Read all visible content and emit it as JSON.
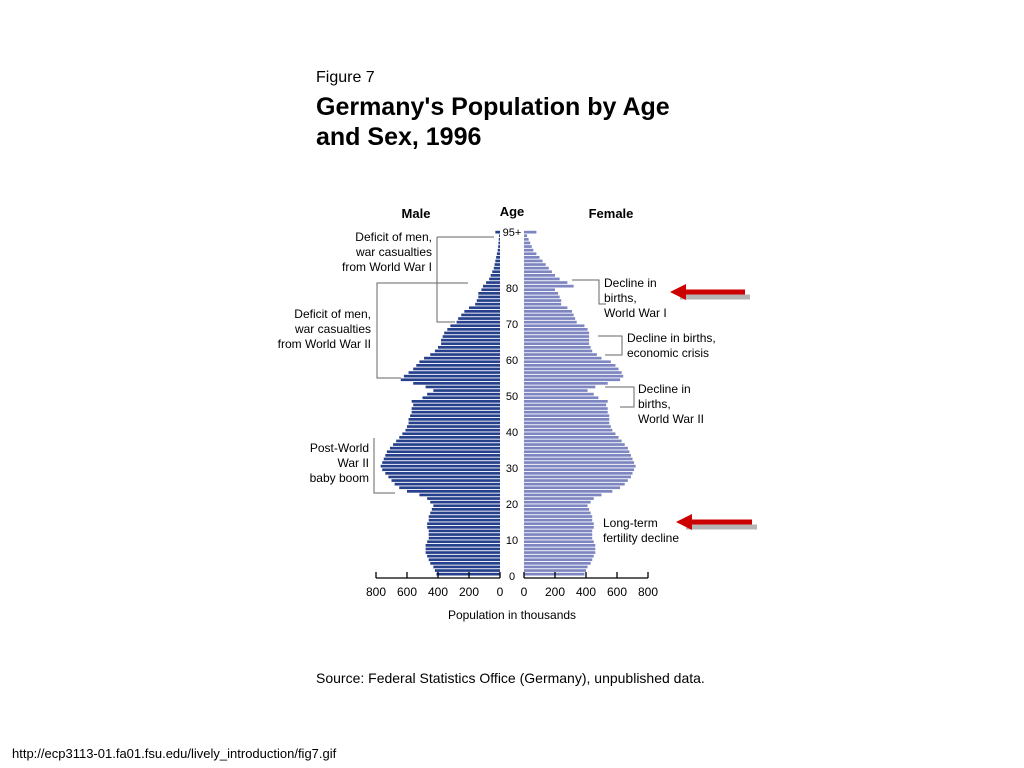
{
  "figure": {
    "label": "Figure 7",
    "title": "Germany's Population by Age\nand Sex, 1996",
    "source": "Source: Federal Statistics Office (Germany), unpublished data.",
    "url": "http://ecp3113-01.fa01.fsu.edu/lively_introduction/fig7.gif"
  },
  "colors": {
    "male": "#27408b",
    "female": "#7d86c0",
    "line": "#000000",
    "bracket": "#666666",
    "arrow": "#cc0000",
    "arrow_shadow": "#b5b5b5"
  },
  "chart_data": {
    "type": "population_pyramid",
    "title": "Germany's Population by Age and Sex, 1996",
    "left_label": "Male",
    "right_label": "Female",
    "center_label": "Age",
    "xlabel": "Population in thousands",
    "x_ticks_left": [
      "800",
      "600",
      "400",
      "200",
      "0"
    ],
    "x_ticks_right": [
      "0",
      "200",
      "400",
      "600",
      "800"
    ],
    "x_tick_values": [
      800,
      600,
      400,
      200,
      0
    ],
    "xlim": [
      0,
      800
    ],
    "y_ticks": [
      "0",
      "10",
      "20",
      "30",
      "40",
      "50",
      "60",
      "70",
      "80",
      "95+"
    ],
    "y_tick_values": [
      0,
      10,
      20,
      30,
      40,
      50,
      60,
      70,
      80,
      95
    ],
    "y_range": [
      0,
      95
    ],
    "age_step": 1,
    "ages": [
      0,
      1,
      2,
      3,
      4,
      5,
      6,
      7,
      8,
      9,
      10,
      11,
      12,
      13,
      14,
      15,
      16,
      17,
      18,
      19,
      20,
      21,
      22,
      23,
      24,
      25,
      26,
      27,
      28,
      29,
      30,
      31,
      32,
      33,
      34,
      35,
      36,
      37,
      38,
      39,
      40,
      41,
      42,
      43,
      44,
      45,
      46,
      47,
      48,
      49,
      50,
      51,
      52,
      53,
      54,
      55,
      56,
      57,
      58,
      59,
      60,
      61,
      62,
      63,
      64,
      65,
      66,
      67,
      68,
      69,
      70,
      71,
      72,
      73,
      74,
      75,
      76,
      77,
      78,
      79,
      80,
      81,
      82,
      83,
      84,
      85,
      86,
      87,
      88,
      89,
      90,
      91,
      92,
      93,
      94,
      95
    ],
    "male": [
      410,
      420,
      430,
      450,
      460,
      470,
      480,
      480,
      480,
      470,
      460,
      460,
      460,
      470,
      470,
      460,
      460,
      450,
      440,
      430,
      450,
      470,
      520,
      600,
      650,
      680,
      700,
      720,
      740,
      760,
      770,
      760,
      750,
      740,
      730,
      710,
      690,
      670,
      650,
      630,
      610,
      600,
      590,
      590,
      580,
      570,
      570,
      560,
      570,
      500,
      470,
      430,
      480,
      560,
      640,
      620,
      590,
      560,
      540,
      520,
      490,
      450,
      420,
      400,
      380,
      380,
      370,
      360,
      340,
      320,
      280,
      270,
      250,
      230,
      200,
      160,
      150,
      140,
      140,
      120,
      110,
      90,
      70,
      60,
      50,
      40,
      35,
      30,
      25,
      20,
      15,
      12,
      10,
      8,
      6,
      30
    ],
    "female": [
      390,
      400,
      410,
      430,
      440,
      450,
      460,
      460,
      460,
      450,
      440,
      440,
      440,
      450,
      450,
      440,
      440,
      430,
      420,
      410,
      430,
      450,
      500,
      570,
      620,
      650,
      670,
      690,
      700,
      710,
      720,
      710,
      700,
      690,
      680,
      670,
      650,
      630,
      610,
      590,
      570,
      560,
      550,
      550,
      550,
      540,
      540,
      530,
      540,
      480,
      450,
      410,
      460,
      540,
      620,
      640,
      630,
      610,
      590,
      560,
      500,
      470,
      440,
      430,
      420,
      420,
      420,
      420,
      410,
      390,
      340,
      330,
      320,
      310,
      280,
      240,
      240,
      230,
      220,
      200,
      320,
      280,
      230,
      200,
      180,
      160,
      140,
      120,
      100,
      80,
      60,
      50,
      40,
      30,
      20,
      80
    ]
  },
  "annotations": {
    "male": [
      {
        "label": "Deficit of men,\nwar casualties\nfrom World War I"
      },
      {
        "label": "Deficit of men,\nwar casualties\nfrom World War II"
      },
      {
        "label": "Post-World\nWar II\nbaby boom"
      }
    ],
    "female": [
      {
        "label": "Decline in\nbirths,\nWorld War I"
      },
      {
        "label": "Decline in births,\neconomic crisis"
      },
      {
        "label": "Decline in\nbirths,\nWorld War II"
      },
      {
        "label": "Long-term\nfertility decline"
      }
    ]
  }
}
